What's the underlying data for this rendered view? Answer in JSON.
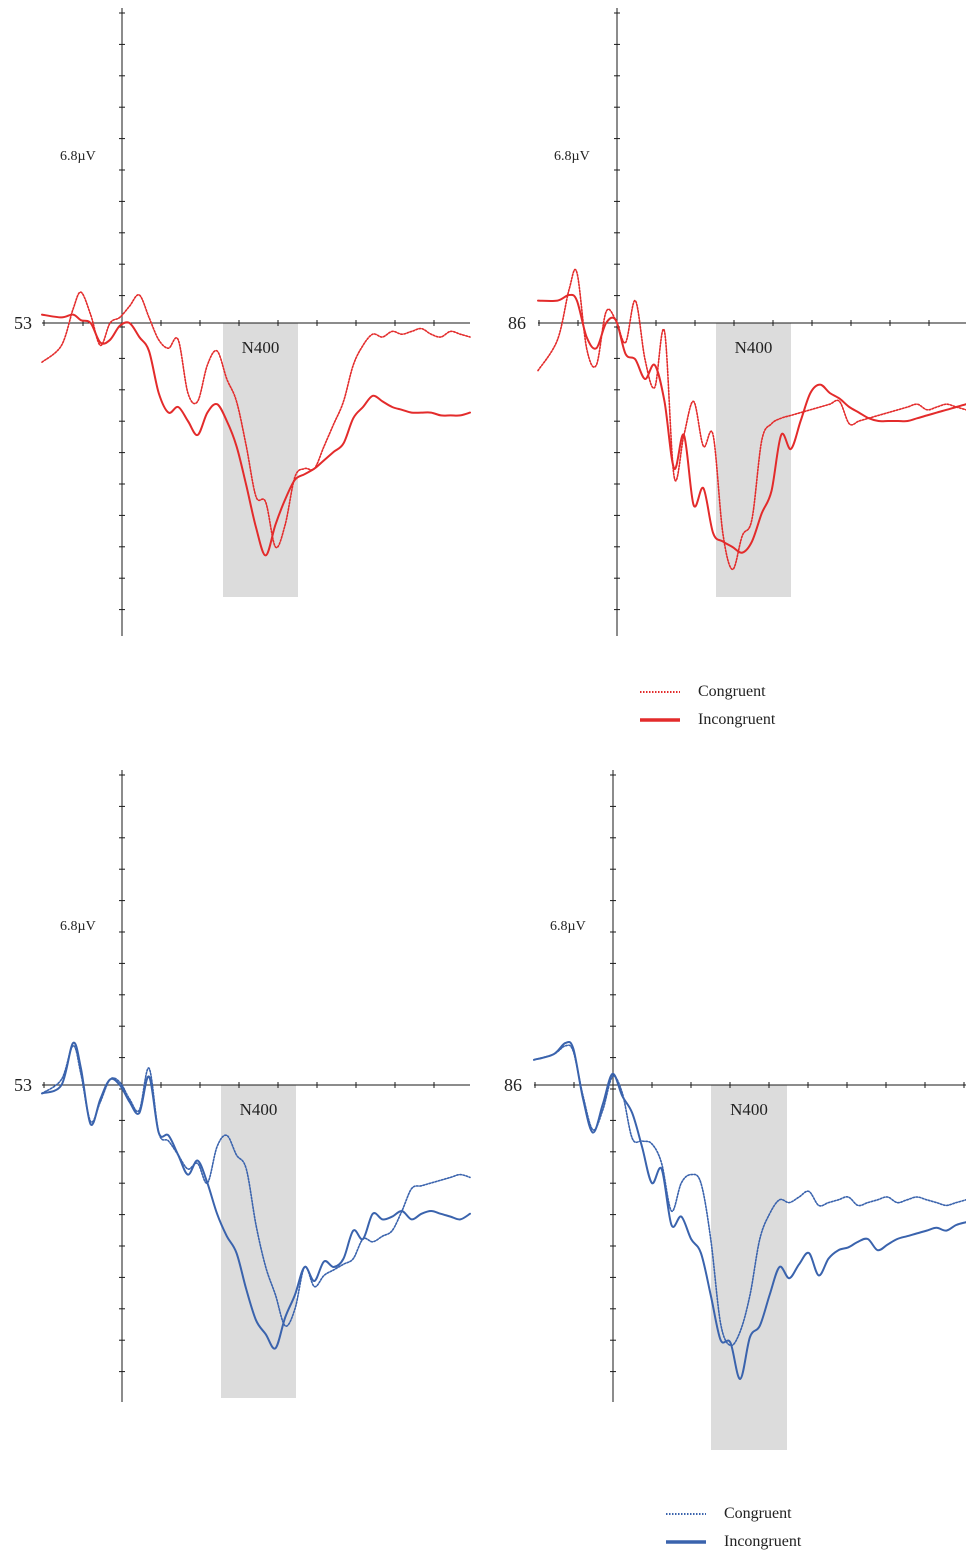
{
  "figure": {
    "colors": {
      "red": "#e32b2b",
      "blue": "#3a63ad",
      "window": "#dcdcdc",
      "axis": "#1a1a1a"
    },
    "window_label": "N400",
    "legend_red": {
      "congruent": "Congruent",
      "incongruent": "Incongruent"
    },
    "legend_blue": {
      "congruent": "Congruent",
      "incongruent": "Incongruent"
    }
  },
  "chart_data": [
    {
      "type": "line",
      "electrode_label": "53",
      "scale_label": "6.8µV",
      "window_label": "N400",
      "color": "#e32b2b",
      "ylim": [
        -10,
        10
      ],
      "x": [
        -200,
        -150,
        -120,
        -100,
        -75,
        -50,
        -25,
        0,
        25,
        50,
        75,
        100,
        125,
        150,
        175,
        200,
        225,
        250,
        275,
        300,
        325,
        350,
        375,
        400,
        425,
        450,
        475,
        500,
        525,
        550,
        575,
        600,
        625,
        650,
        675,
        700,
        725,
        750,
        775,
        800,
        825,
        850,
        875,
        900
      ],
      "series": [
        {
          "name": "Congruent",
          "style": "dotted",
          "values": [
            -1.4,
            -0.8,
            0.5,
            1.1,
            0.3,
            -0.8,
            0.0,
            0.2,
            0.6,
            1.0,
            0.2,
            -0.6,
            -0.9,
            -0.6,
            -2.5,
            -2.8,
            -1.5,
            -1.0,
            -2.0,
            -2.8,
            -4.4,
            -6.2,
            -6.4,
            -8.0,
            -7.2,
            -5.5,
            -5.2,
            -5.2,
            -4.4,
            -3.6,
            -2.8,
            -1.5,
            -0.8,
            -0.4,
            -0.5,
            -0.3,
            -0.4,
            -0.3,
            -0.2,
            -0.4,
            -0.5,
            -0.3,
            -0.4,
            -0.5
          ]
        },
        {
          "name": "Incongruent",
          "style": "solid",
          "values": [
            0.3,
            0.2,
            0.3,
            0.1,
            0.0,
            -0.7,
            -0.6,
            -0.1,
            0.0,
            -0.5,
            -1.0,
            -2.5,
            -3.2,
            -3.0,
            -3.5,
            -4.0,
            -3.2,
            -2.9,
            -3.5,
            -4.4,
            -5.8,
            -7.3,
            -8.3,
            -7.2,
            -6.3,
            -5.6,
            -5.4,
            -5.2,
            -4.9,
            -4.6,
            -4.3,
            -3.4,
            -3.0,
            -2.6,
            -2.8,
            -3.0,
            -3.1,
            -3.2,
            -3.2,
            -3.2,
            -3.3,
            -3.3,
            -3.3,
            -3.2
          ]
        }
      ]
    },
    {
      "type": "line",
      "electrode_label": "86",
      "scale_label": "6.8µV",
      "window_label": "N400",
      "color": "#e32b2b",
      "ylim": [
        -10,
        10
      ],
      "x": [
        -200,
        -150,
        -120,
        -100,
        -75,
        -50,
        -25,
        0,
        25,
        50,
        75,
        100,
        125,
        150,
        175,
        200,
        225,
        250,
        275,
        300,
        325,
        350,
        375,
        400,
        425,
        450,
        475,
        500,
        525,
        550,
        575,
        600,
        625,
        650,
        675,
        700,
        725,
        750,
        775,
        800,
        825,
        850,
        875,
        900
      ],
      "series": [
        {
          "name": "Congruent",
          "style": "dotted",
          "values": [
            -1.7,
            -0.6,
            1.2,
            1.8,
            -0.9,
            -1.5,
            0.4,
            0.1,
            -0.7,
            0.8,
            -1.3,
            -2.3,
            -0.3,
            -5.5,
            -4.0,
            -2.8,
            -4.4,
            -4.0,
            -7.5,
            -8.8,
            -7.6,
            -7.0,
            -4.2,
            -3.6,
            -3.4,
            -3.3,
            -3.2,
            -3.1,
            -3.0,
            -2.9,
            -2.8,
            -3.6,
            -3.5,
            -3.4,
            -3.3,
            -3.2,
            -3.1,
            -3.0,
            -2.9,
            -3.1,
            -3.0,
            -2.9,
            -3.0,
            -3.1
          ]
        },
        {
          "name": "Incongruent",
          "style": "solid",
          "values": [
            0.8,
            0.8,
            1.0,
            0.8,
            -0.5,
            -0.9,
            0.0,
            0.1,
            -1.1,
            -1.3,
            -2.0,
            -1.5,
            -2.8,
            -5.2,
            -4.0,
            -6.5,
            -5.9,
            -7.5,
            -7.8,
            -8.0,
            -8.2,
            -7.8,
            -6.8,
            -6.0,
            -4.0,
            -4.5,
            -3.5,
            -2.5,
            -2.2,
            -2.5,
            -2.7,
            -3.0,
            -3.2,
            -3.4,
            -3.5,
            -3.5,
            -3.5,
            -3.5,
            -3.4,
            -3.3,
            -3.2,
            -3.1,
            -3.0,
            -2.9
          ]
        }
      ]
    },
    {
      "type": "line",
      "electrode_label": "53",
      "scale_label": "6.8µV",
      "window_label": "N400",
      "color": "#3a63ad",
      "ylim": [
        -10,
        10
      ],
      "x": [
        -200,
        -150,
        -120,
        -100,
        -75,
        -50,
        -25,
        0,
        25,
        50,
        75,
        100,
        125,
        150,
        175,
        200,
        225,
        250,
        275,
        300,
        325,
        350,
        375,
        400,
        425,
        450,
        475,
        500,
        525,
        550,
        575,
        600,
        625,
        650,
        675,
        700,
        725,
        750,
        775,
        800,
        825,
        850,
        875,
        900
      ],
      "series": [
        {
          "name": "Congruent",
          "style": "dotted",
          "values": [
            -0.3,
            0.2,
            1.4,
            0.4,
            -1.3,
            -0.6,
            0.2,
            0.1,
            -0.5,
            -0.9,
            0.6,
            -1.7,
            -2.0,
            -2.5,
            -3.0,
            -2.8,
            -3.5,
            -2.2,
            -1.8,
            -2.5,
            -3.0,
            -5.0,
            -6.5,
            -7.5,
            -8.6,
            -8.0,
            -6.5,
            -7.2,
            -6.8,
            -6.6,
            -6.4,
            -6.2,
            -5.5,
            -5.6,
            -5.4,
            -5.2,
            -4.5,
            -3.7,
            -3.6,
            -3.5,
            -3.4,
            -3.3,
            -3.2,
            -3.3
          ]
        },
        {
          "name": "Incongruent",
          "style": "solid",
          "values": [
            -0.3,
            0.0,
            1.5,
            0.6,
            -1.4,
            -0.5,
            0.2,
            0.0,
            -0.6,
            -1.0,
            0.3,
            -1.7,
            -1.8,
            -2.5,
            -3.2,
            -2.7,
            -3.5,
            -4.6,
            -5.4,
            -6.0,
            -7.3,
            -8.4,
            -8.9,
            -9.4,
            -8.3,
            -7.5,
            -6.5,
            -7.0,
            -6.3,
            -6.5,
            -6.2,
            -5.2,
            -5.5,
            -4.6,
            -4.8,
            -4.7,
            -4.5,
            -4.8,
            -4.6,
            -4.5,
            -4.6,
            -4.7,
            -4.8,
            -4.6
          ]
        }
      ]
    },
    {
      "type": "line",
      "electrode_label": "86",
      "scale_label": "6.8µV",
      "window_label": "N400",
      "color": "#3a63ad",
      "ylim": [
        -10,
        10
      ],
      "x": [
        -200,
        -150,
        -120,
        -100,
        -75,
        -50,
        -25,
        0,
        25,
        50,
        75,
        100,
        125,
        150,
        175,
        200,
        225,
        250,
        275,
        300,
        325,
        350,
        375,
        400,
        425,
        450,
        475,
        500,
        525,
        550,
        575,
        600,
        625,
        650,
        675,
        700,
        725,
        750,
        775,
        800,
        825,
        850,
        875,
        900
      ],
      "series": [
        {
          "name": "Congruent",
          "style": "dotted",
          "values": [
            0.9,
            1.1,
            1.4,
            1.2,
            -0.4,
            -1.6,
            -0.9,
            0.3,
            -0.3,
            -1.9,
            -2.0,
            -2.1,
            -2.8,
            -4.5,
            -3.5,
            -3.2,
            -3.5,
            -5.5,
            -8.5,
            -9.3,
            -8.8,
            -7.5,
            -5.5,
            -4.6,
            -4.1,
            -4.2,
            -4.0,
            -3.8,
            -4.3,
            -4.2,
            -4.1,
            -4.0,
            -4.3,
            -4.2,
            -4.1,
            -4.0,
            -4.2,
            -4.1,
            -4.0,
            -4.1,
            -4.2,
            -4.3,
            -4.2,
            -4.1
          ]
        },
        {
          "name": "Incongruent",
          "style": "solid",
          "values": [
            0.9,
            1.1,
            1.5,
            1.3,
            -0.5,
            -1.7,
            -0.7,
            0.4,
            -0.4,
            -1.0,
            -2.2,
            -3.5,
            -3.0,
            -5.0,
            -4.7,
            -5.5,
            -6.0,
            -7.5,
            -9.1,
            -9.2,
            -10.5,
            -9.0,
            -8.6,
            -7.5,
            -6.5,
            -6.9,
            -6.4,
            -6.0,
            -6.8,
            -6.2,
            -5.9,
            -5.8,
            -5.6,
            -5.5,
            -5.9,
            -5.7,
            -5.5,
            -5.4,
            -5.3,
            -5.2,
            -5.1,
            -5.2,
            -5.0,
            -4.9
          ]
        }
      ]
    }
  ]
}
